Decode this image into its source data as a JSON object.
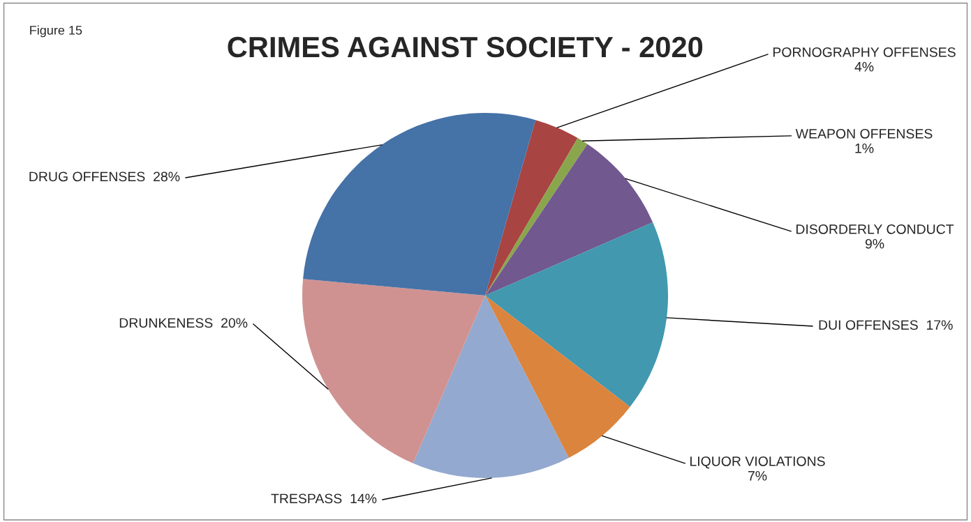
{
  "chart_data": {
    "type": "pie",
    "title": "CRIMES AGAINST SOCIETY - 2020",
    "annotations": [
      "Figure 15"
    ],
    "categories": [
      "PORNOGRAPHY OFFENSES",
      "WEAPON OFFENSES",
      "DISORDERLY CONDUCT",
      "DUI OFFENSES",
      "LIQUOR VIOLATIONS",
      "TRESPASS",
      "DRUNKENESS",
      "DRUG OFFENSES"
    ],
    "values": [
      4,
      1,
      9,
      17,
      7,
      14,
      20,
      28
    ],
    "value_labels": [
      "4%",
      "1%",
      "9%",
      "17%",
      "7%",
      "14%",
      "20%",
      "28%"
    ],
    "colors": [
      "#a84442",
      "#8aa64d",
      "#71588f",
      "#4198af",
      "#db843d",
      "#93a9cf",
      "#d09291",
      "#4572a7"
    ],
    "legend": false
  }
}
